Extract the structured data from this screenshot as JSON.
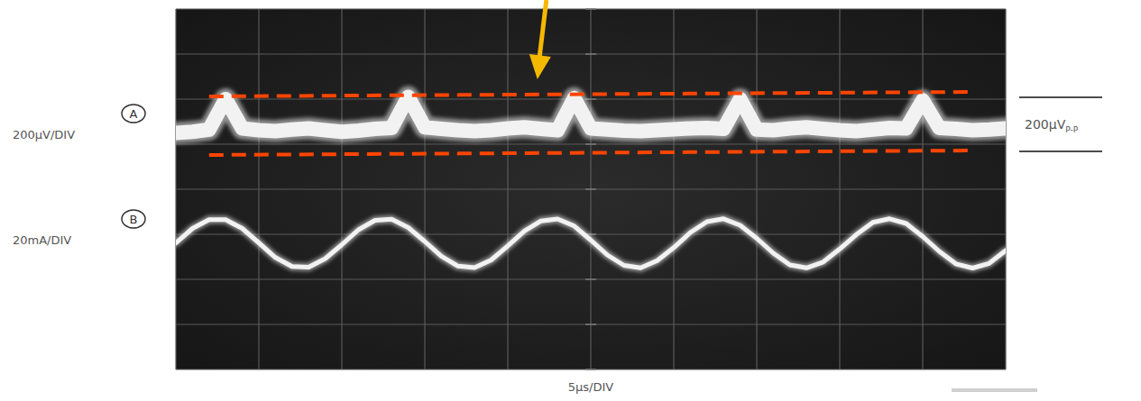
{
  "chart_data": {
    "type": "line",
    "x_label": "5μs/DIV",
    "x": [
      0,
      1,
      2,
      3,
      4,
      5,
      6,
      7,
      8,
      9,
      10,
      11,
      12,
      13,
      14,
      15,
      16,
      17,
      18,
      19,
      20,
      21,
      22,
      23,
      24,
      25,
      26,
      27,
      28,
      29,
      30,
      31,
      32,
      33,
      34,
      35,
      36,
      37,
      38,
      39,
      40,
      41,
      42,
      43,
      44,
      45,
      46,
      47,
      48,
      49,
      50
    ],
    "xlim": [
      0,
      50
    ],
    "xticks": [
      0,
      5,
      10,
      15,
      20,
      25,
      30,
      35,
      40,
      45,
      50
    ],
    "ylim": [
      -800,
      800
    ],
    "yticks": [
      -800,
      -600,
      -400,
      -200,
      0,
      200,
      400,
      600,
      800
    ],
    "y2lim": [
      -80,
      80
    ],
    "y2ticks": [
      -80,
      -60,
      -40,
      -20,
      0,
      20,
      40,
      60,
      80
    ],
    "grid": true,
    "tick_labels": false,
    "series": [
      {
        "name": "A",
        "label": "200μV/DIV",
        "color": "#f2f2f2",
        "values": [
          250,
          255,
          265,
          400,
          270,
          262,
          258,
          265,
          270,
          262,
          255,
          260,
          268,
          272,
          410,
          275,
          268,
          262,
          258,
          262,
          270,
          275,
          268,
          262,
          405,
          270,
          265,
          260,
          258,
          262,
          266,
          270,
          272,
          268,
          400,
          265,
          262,
          270,
          275,
          268,
          262,
          258,
          265,
          272,
          270,
          395,
          272,
          268,
          262,
          265,
          270
        ]
      },
      {
        "name": "B",
        "label": "20mA/DIV",
        "color": "#f2f2f2",
        "axis": "y2",
        "values": [
          -23.8,
          -17.4,
          -13.5,
          -13.5,
          -17.4,
          -23.8,
          -30.3,
          -34.3,
          -34.6,
          -30.8,
          -24.6,
          -18,
          -13.8,
          -13.3,
          -17,
          -23.2,
          -29.7,
          -34.1,
          -34.8,
          -31.4,
          -25.1,
          -18.5,
          -14.1,
          -13.2,
          -16.3,
          -22.6,
          -29.2,
          -33.8,
          -34.9,
          -31.7,
          -25.9,
          -19.2,
          -14.4,
          -13.1,
          -16,
          -21.8,
          -28.4,
          -33.6,
          -34.9,
          -32.3,
          -26.5,
          -20.1,
          -14.7,
          -13.1,
          -15.2,
          -21,
          -27.6,
          -33.1,
          -35,
          -32.9,
          -27.2
        ]
      }
    ],
    "limit_lines": {
      "color": "#ff4500",
      "line_style": "dashed",
      "lines": [
        {
          "x": [
            2,
            48
          ],
          "values": [
            412,
            432
          ]
        },
        {
          "x": [
            2,
            48
          ],
          "values": [
            152,
            172
          ]
        }
      ]
    },
    "ref_lines": [
      408,
      168
    ],
    "ref_label": {
      "text": "200μV",
      "subscript": "P-P"
    }
  }
}
